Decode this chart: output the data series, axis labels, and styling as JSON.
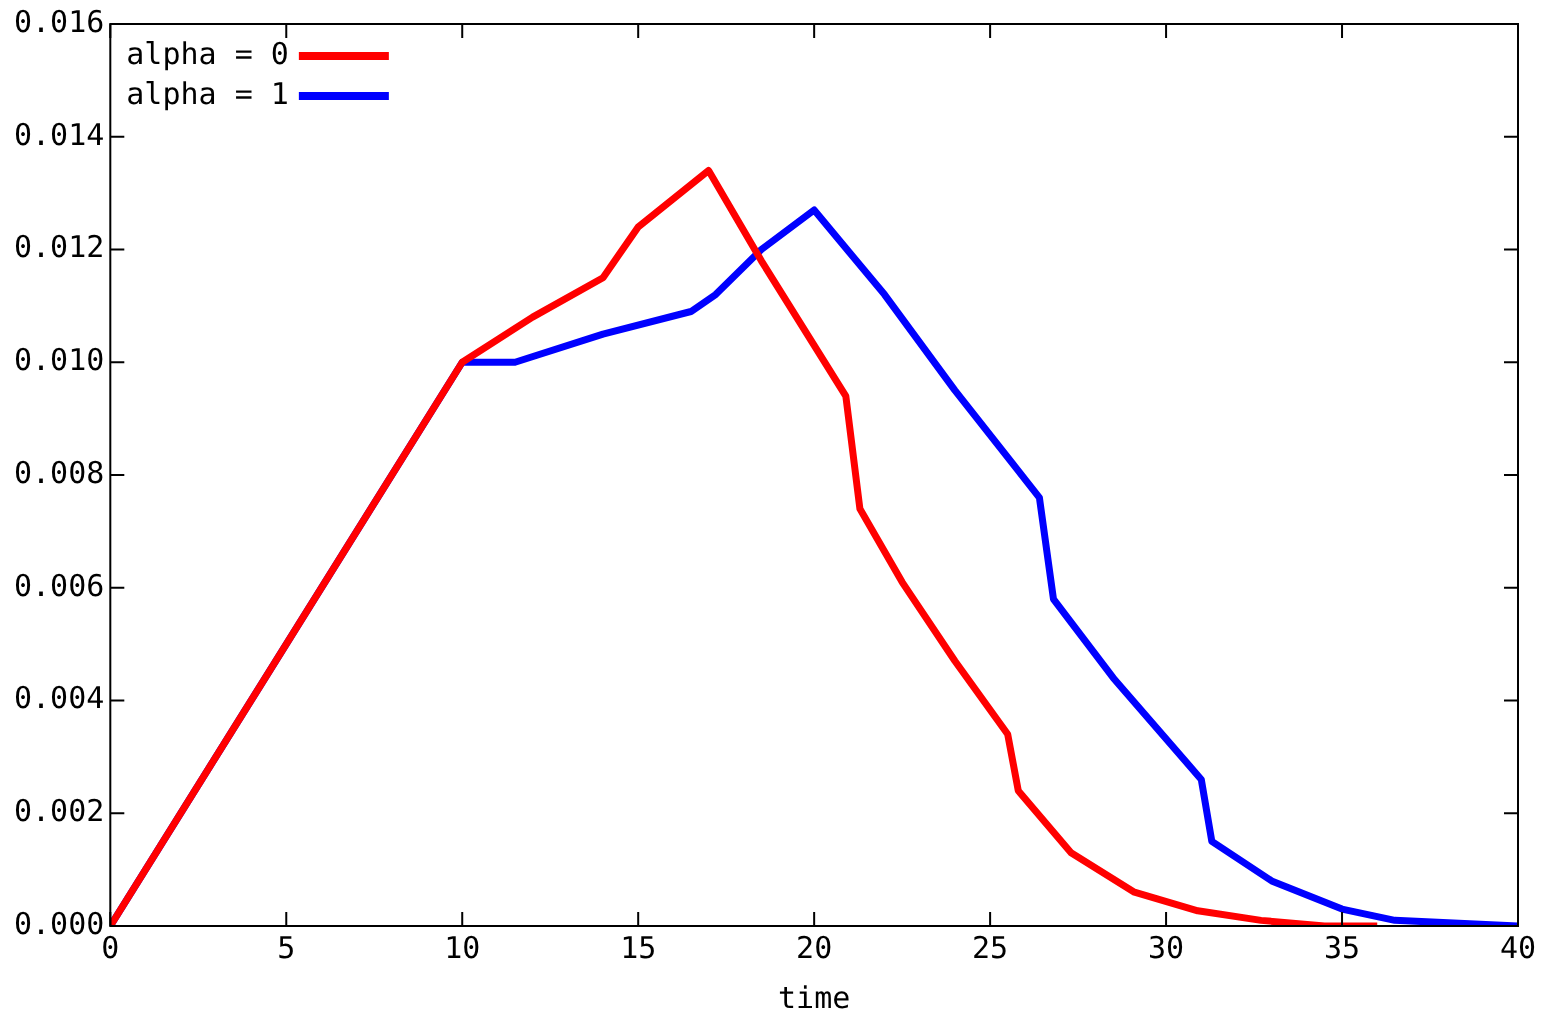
{
  "chart_data": {
    "type": "line",
    "xlabel": "time",
    "series": [
      {
        "name": "alpha = 0",
        "color": "#ff0000",
        "x": [
          0,
          10,
          12,
          14,
          15,
          17,
          18.5,
          20,
          20.9,
          21.3,
          22.5,
          24,
          25.5,
          25.8,
          27.3,
          29.1,
          30.9,
          32.7,
          34.5,
          36
        ],
        "values": [
          0,
          0.01,
          0.0108,
          0.0115,
          0.0124,
          0.0134,
          0.0118,
          0.0103,
          0.0094,
          0.0074,
          0.0061,
          0.0047,
          0.0034,
          0.0024,
          0.0013,
          0.0006,
          0.00027,
          0.0001,
          0,
          0
        ]
      },
      {
        "name": "alpha = 1",
        "color": "#0000ff",
        "x": [
          0,
          10,
          11.5,
          14,
          16.5,
          17.2,
          18.5,
          20,
          22,
          24,
          26.4,
          26.8,
          28.5,
          31,
          31.3,
          33,
          35,
          36.5,
          40
        ],
        "values": [
          0,
          0.01,
          0.01,
          0.0105,
          0.0109,
          0.0112,
          0.012,
          0.0127,
          0.0112,
          0.0095,
          0.0076,
          0.0058,
          0.0044,
          0.0026,
          0.0015,
          0.0008,
          0.0003,
          0.0001,
          0
        ]
      }
    ],
    "xlim": [
      0,
      40
    ],
    "xticks": [
      0,
      5,
      10,
      15,
      20,
      25,
      30,
      35,
      40
    ],
    "ylim": [
      0,
      0.016
    ],
    "yticks": [
      {
        "value": 0,
        "label": "0.000"
      },
      {
        "value": 0.002,
        "label": "0.002"
      },
      {
        "value": 0.004,
        "label": "0.004"
      },
      {
        "value": 0.006,
        "label": "0.006"
      },
      {
        "value": 0.008,
        "label": "0.008"
      },
      {
        "value": 0.01,
        "label": "0.010"
      },
      {
        "value": 0.012,
        "label": "0.012"
      },
      {
        "value": 0.014,
        "label": "0.014"
      },
      {
        "value": 0.016,
        "label": "0.016"
      }
    ],
    "legend": "top left",
    "grid": false,
    "marker": "none",
    "line_style": "solid"
  }
}
